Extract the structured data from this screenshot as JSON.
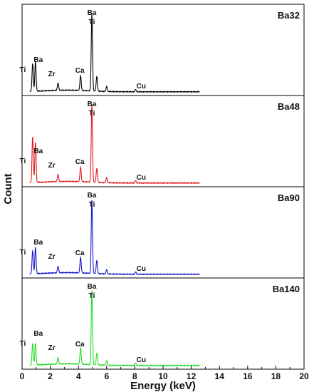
{
  "chart_data": {
    "type": "line",
    "stacked_panels": true,
    "xlabel": "Energy (keV)",
    "ylabel": "Count",
    "xlim": [
      0,
      20
    ],
    "x_ticks": [
      "0",
      "2",
      "4",
      "6",
      "8",
      "10",
      "12",
      "14",
      "16",
      "18",
      "20"
    ],
    "element_lines": [
      {
        "label": "Ti",
        "energy": 0.45
      },
      {
        "label": "Ba",
        "energy": 0.78
      },
      {
        "label": "Zr",
        "energy": 2.04
      },
      {
        "label": "Ca",
        "energy": 3.69
      },
      {
        "label": "Ba",
        "energy": 4.47
      },
      {
        "label": "Ti",
        "energy": 4.51
      },
      {
        "label": "Cu",
        "energy": 8.05
      }
    ],
    "panels": [
      {
        "name": "Ba32",
        "color": "#000000",
        "peaks": [
          {
            "energy": 0.75,
            "height": 0.34
          },
          {
            "energy": 0.95,
            "height": 0.36
          },
          {
            "energy": 2.55,
            "height": 0.09
          },
          {
            "energy": 4.15,
            "height": 0.18
          },
          {
            "energy": 4.95,
            "height": 0.94
          },
          {
            "energy": 5.3,
            "height": 0.18
          },
          {
            "energy": 6.0,
            "height": 0.06
          },
          {
            "energy": 8.05,
            "height": 0.03
          }
        ]
      },
      {
        "name": "Ba48",
        "color": "#e3191c",
        "peaks": [
          {
            "energy": 0.75,
            "height": 0.56
          },
          {
            "energy": 0.95,
            "height": 0.49
          },
          {
            "energy": 2.55,
            "height": 0.09
          },
          {
            "energy": 4.15,
            "height": 0.18
          },
          {
            "energy": 4.95,
            "height": 0.95
          },
          {
            "energy": 5.3,
            "height": 0.17
          },
          {
            "energy": 6.0,
            "height": 0.06
          },
          {
            "energy": 8.05,
            "height": 0.03
          }
        ]
      },
      {
        "name": "Ba90",
        "color": "#1515c8",
        "peaks": [
          {
            "energy": 0.75,
            "height": 0.28
          },
          {
            "energy": 0.95,
            "height": 0.32
          },
          {
            "energy": 2.55,
            "height": 0.08
          },
          {
            "energy": 4.15,
            "height": 0.19
          },
          {
            "energy": 4.95,
            "height": 0.9
          },
          {
            "energy": 5.3,
            "height": 0.16
          },
          {
            "energy": 6.0,
            "height": 0.05
          },
          {
            "energy": 8.05,
            "height": 0.03
          }
        ]
      },
      {
        "name": "Ba140",
        "color": "#22dd22",
        "peaks": [
          {
            "energy": 0.75,
            "height": 0.26
          },
          {
            "energy": 0.95,
            "height": 0.26
          },
          {
            "energy": 2.55,
            "height": 0.08
          },
          {
            "energy": 4.15,
            "height": 0.2
          },
          {
            "energy": 4.95,
            "height": 0.91
          },
          {
            "energy": 5.3,
            "height": 0.14
          },
          {
            "energy": 6.0,
            "height": 0.05
          },
          {
            "energy": 8.05,
            "height": 0.03
          }
        ]
      }
    ]
  }
}
